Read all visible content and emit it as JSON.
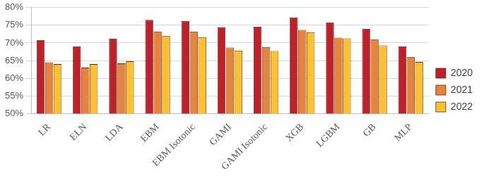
{
  "chart_data": {
    "type": "bar",
    "categories": [
      "LR",
      "ELN",
      "LDA",
      "EBM",
      "EBM Isotonic",
      "GAMI",
      "GAMI Isotonic",
      "XGB",
      "LGBM",
      "GB",
      "MLP"
    ],
    "series": [
      {
        "name": "2020",
        "color": "#c0202a",
        "values": [
          70.8,
          69.0,
          71.2,
          76.5,
          76.2,
          74.5,
          74.6,
          77.2,
          75.8,
          74.0,
          69.0
        ]
      },
      {
        "name": "2021",
        "color": "#e8833a",
        "values": [
          64.5,
          63.0,
          64.2,
          73.2,
          73.2,
          68.7,
          68.8,
          73.7,
          71.5,
          71.0,
          66.0
        ]
      },
      {
        "name": "2022",
        "color": "#fdc02f",
        "values": [
          64.0,
          64.0,
          64.8,
          72.0,
          71.6,
          67.8,
          67.7,
          73.0,
          71.3,
          69.3,
          64.6
        ]
      }
    ],
    "ylim": [
      50,
      80
    ],
    "yticks": [
      {
        "value": 50,
        "label": "50%"
      },
      {
        "value": 55,
        "label": "55%"
      },
      {
        "value": 60,
        "label": "60%"
      },
      {
        "value": 65,
        "label": "65%"
      },
      {
        "value": 70,
        "label": "70%"
      },
      {
        "value": 75,
        "label": "75%"
      },
      {
        "value": 80,
        "label": "80%"
      }
    ],
    "grid": true,
    "legend": "right"
  }
}
